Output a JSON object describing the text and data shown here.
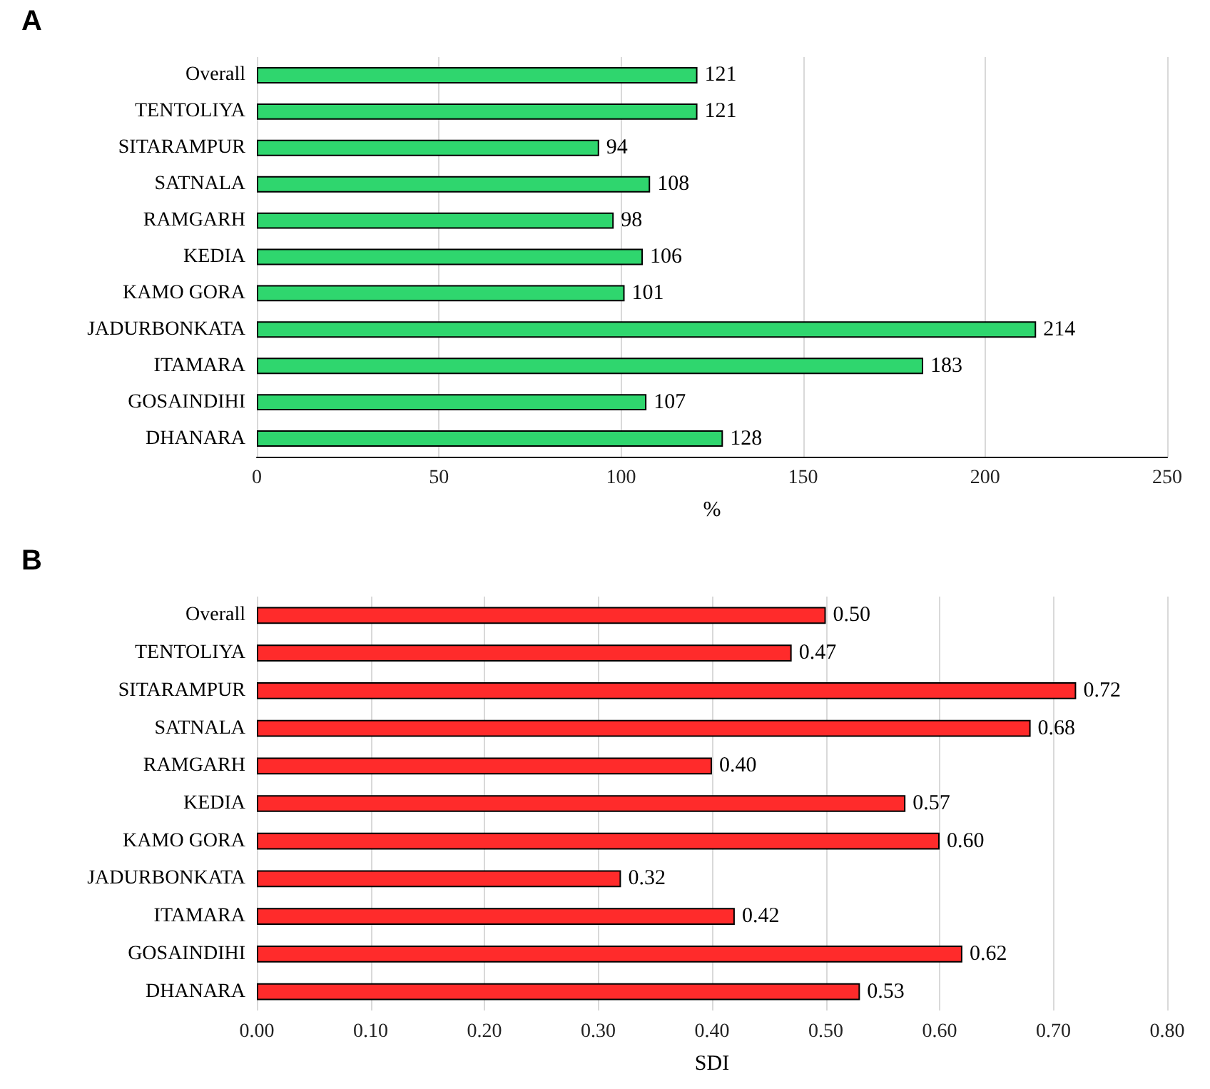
{
  "chart_data": [
    {
      "type": "bar",
      "title": "A",
      "xlabel": "%",
      "orientation": "horizontal",
      "categories": [
        "Overall",
        "TENTOLIYA",
        "SITARAMPUR",
        "SATNALA",
        "RAMGARH",
        "KEDIA",
        "KAMO GORA",
        "JADURBONKATA",
        "ITAMARA",
        "GOSAINDIHI",
        "DHANARA"
      ],
      "values": [
        121,
        121,
        94,
        108,
        98,
        106,
        101,
        214,
        183,
        107,
        128
      ],
      "color": "#2fd66e",
      "xlim": [
        0,
        250
      ],
      "xticks": [
        0,
        50,
        100,
        150,
        200,
        250
      ],
      "grid": "x",
      "data_labels": true
    },
    {
      "type": "bar",
      "title": "B",
      "xlabel": "SDI",
      "orientation": "horizontal",
      "categories": [
        "Overall",
        "TENTOLIYA",
        "SITARAMPUR",
        "SATNALA",
        "RAMGARH",
        "KEDIA",
        "KAMO GORA",
        "JADURBONKATA",
        "ITAMARA",
        "GOSAINDIHI",
        "DHANARA"
      ],
      "values": [
        0.5,
        0.47,
        0.72,
        0.68,
        0.4,
        0.57,
        0.6,
        0.32,
        0.42,
        0.62,
        0.53
      ],
      "value_labels": [
        "0.50",
        "0.47",
        "0.72",
        "0.68",
        "0.40",
        "0.57",
        "0.60",
        "0.32",
        "0.42",
        "0.62",
        "0.53"
      ],
      "color": "#ff2b2b",
      "xlim": [
        0,
        0.8
      ],
      "xticks": [
        {
          "value": 0,
          "label": "0.00"
        },
        {
          "value": 0.1,
          "label": "0.10"
        },
        {
          "value": 0.2,
          "label": "0.20"
        },
        {
          "value": 0.3,
          "label": "0.30"
        },
        {
          "value": 0.4,
          "label": "0.40"
        },
        {
          "value": 0.5,
          "label": "0.50"
        },
        {
          "value": 0.6,
          "label": "0.60"
        },
        {
          "value": 0.7,
          "label": "0.70"
        },
        {
          "value": 0.8,
          "label": "0.80"
        }
      ],
      "grid": "x"
    }
  ]
}
